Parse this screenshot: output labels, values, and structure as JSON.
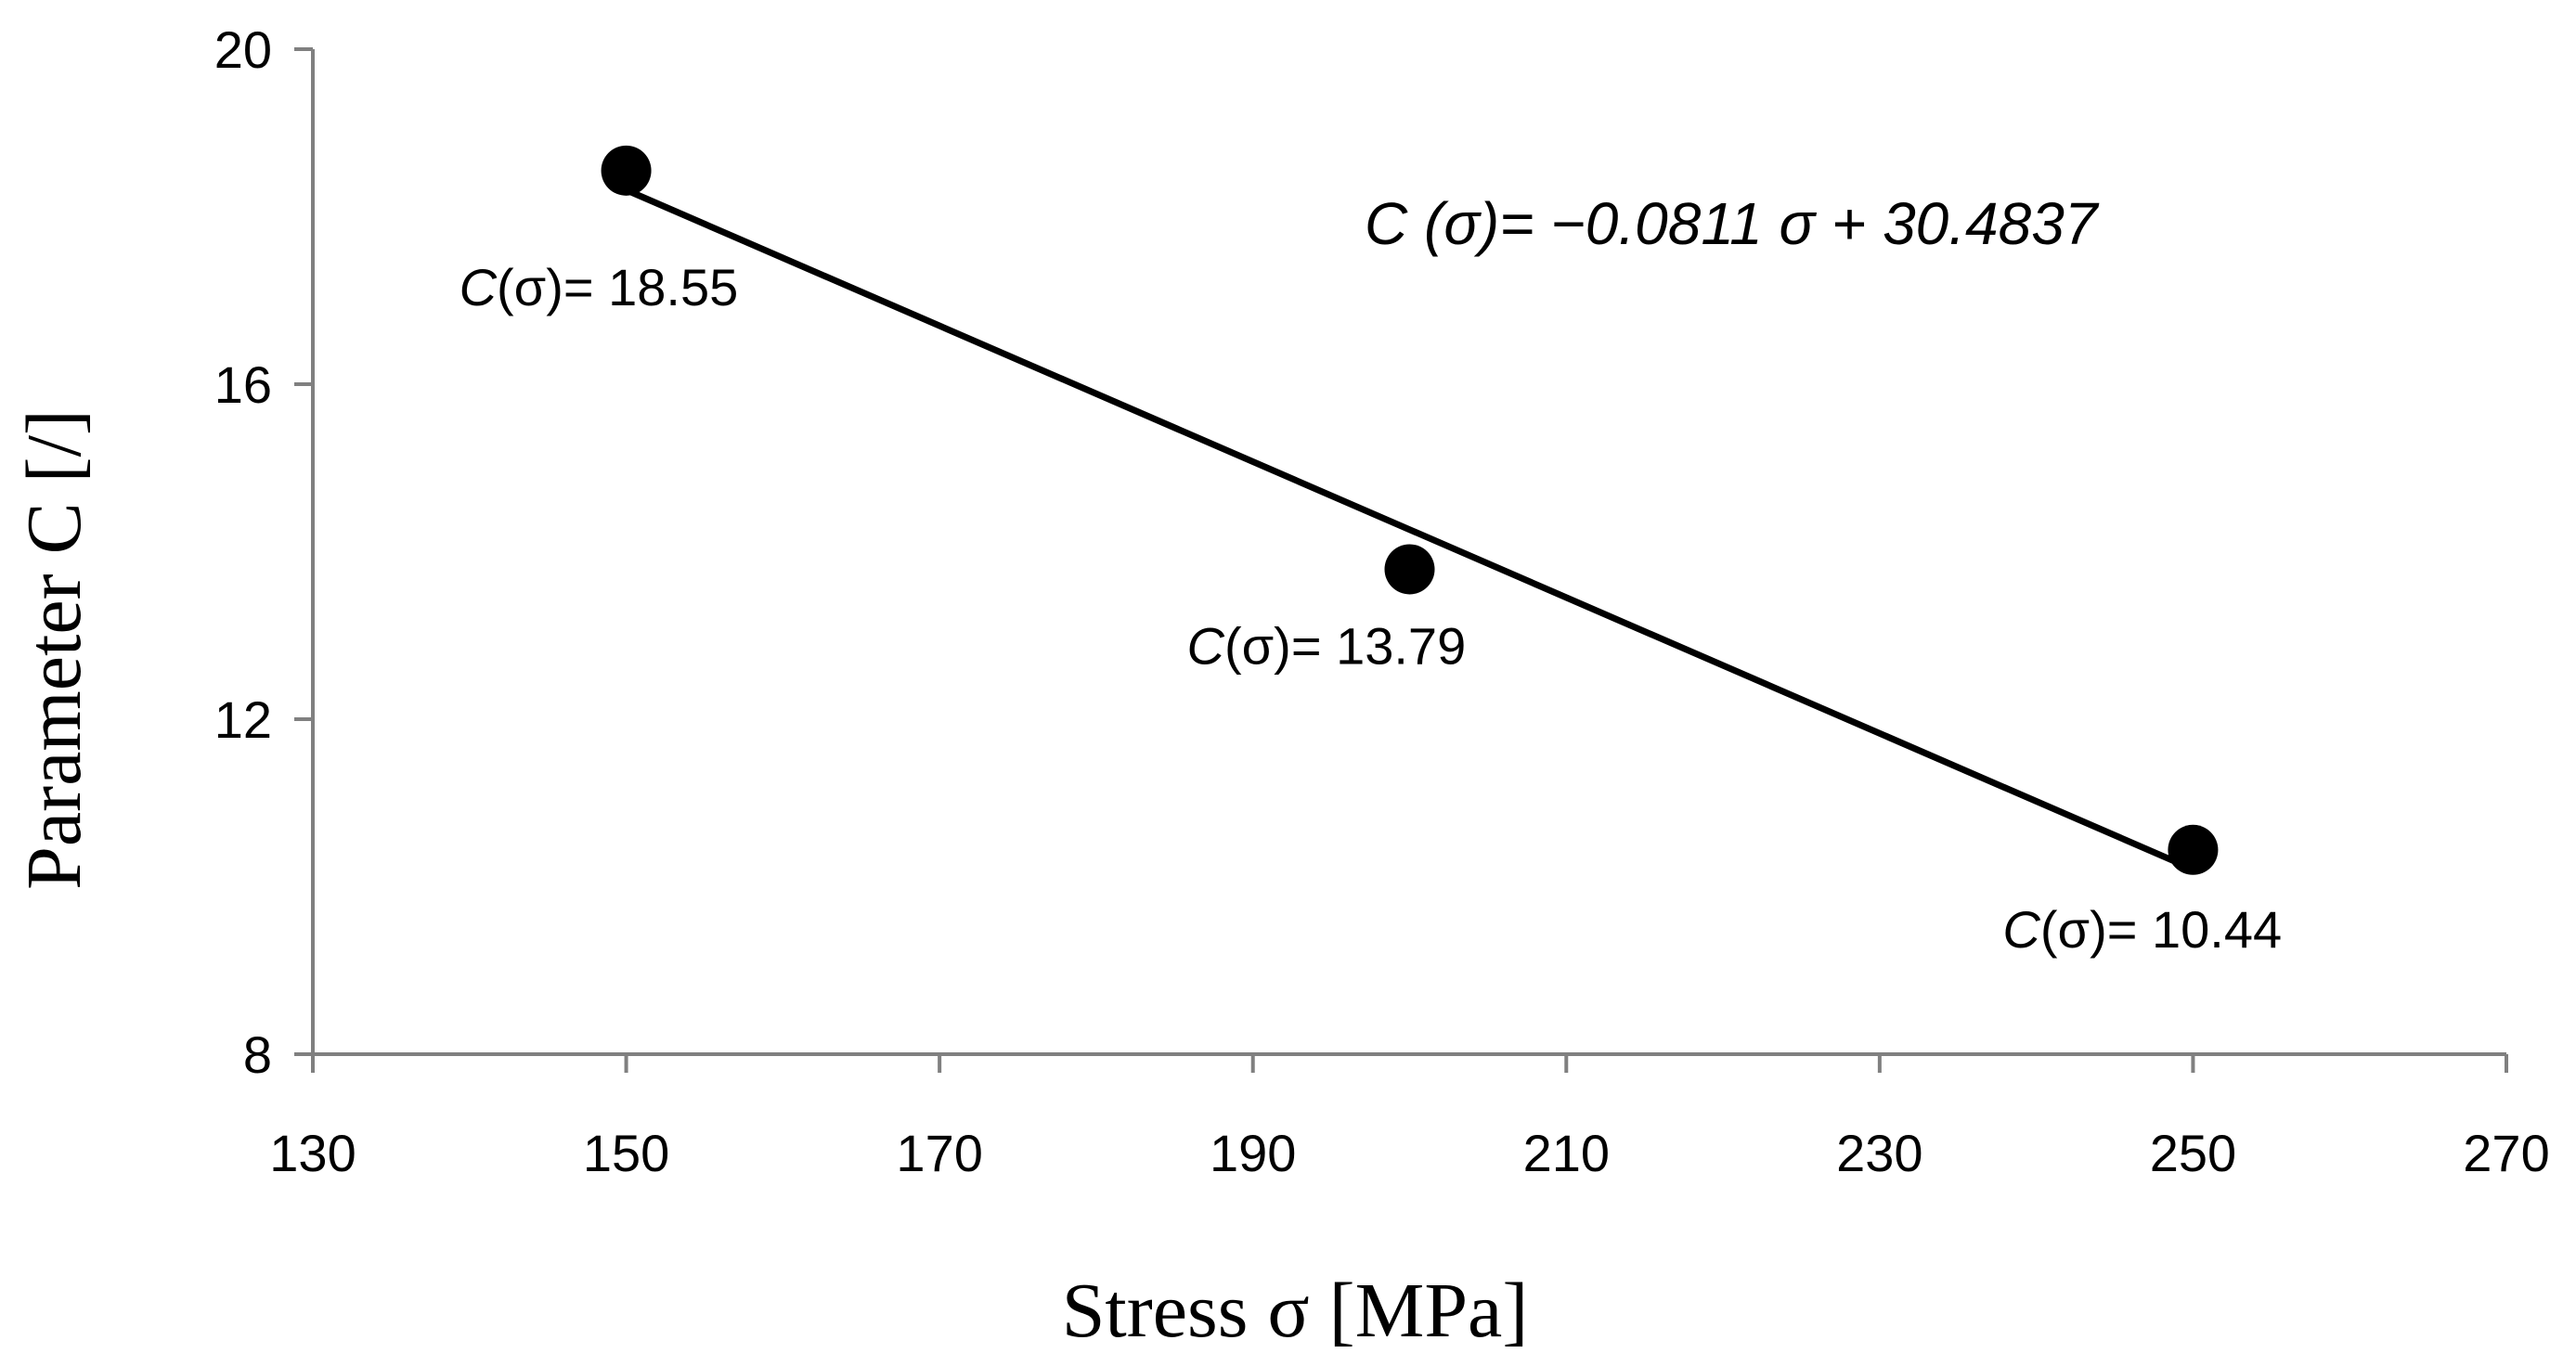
{
  "chart_data": {
    "type": "scatter",
    "xlabel": "Stress σ [MPa]",
    "ylabel": "Parameter  C [/]",
    "xlim": [
      130,
      270
    ],
    "ylim": [
      8,
      20
    ],
    "x_ticks": [
      "130",
      "150",
      "170",
      "190",
      "210",
      "230",
      "250",
      "270"
    ],
    "y_ticks": [
      "8",
      "12",
      "16",
      "20"
    ],
    "grid": false,
    "series": [
      {
        "name": "C(σ)",
        "points": [
          {
            "x": 150,
            "y": 18.55,
            "label_prefix": "C",
            "label_mid": "(σ)",
            "label_value": "= 18.55"
          },
          {
            "x": 200,
            "y": 13.79,
            "label_prefix": "C",
            "label_mid": "(σ)",
            "label_value": "= 13.79"
          },
          {
            "x": 250,
            "y": 10.44,
            "label_prefix": "C",
            "label_mid": "(σ)",
            "label_value": "= 10.44"
          }
        ]
      }
    ],
    "trendline": {
      "slope": -0.0811,
      "intercept": 30.4837,
      "x_range": [
        150,
        250
      ],
      "equation": "C (σ)= −0.0811 σ + 30.4837"
    },
    "colors": {
      "axis": "#808080",
      "marker": "#000000",
      "line": "#000000"
    }
  }
}
